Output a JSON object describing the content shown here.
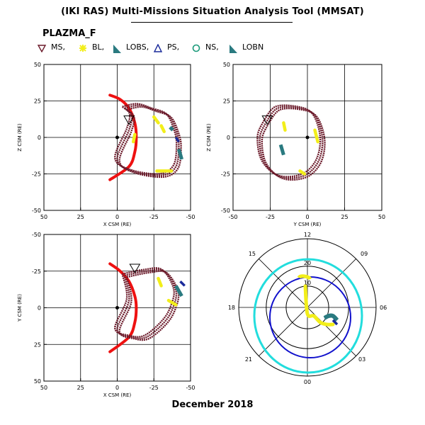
{
  "header": {
    "title": "(IKI RAS) Multi-Missions Situation Analysis Tool (MMSAT)",
    "mission": "PLAZMA_F",
    "footer": "December 2018"
  },
  "legend": [
    {
      "label": "MS,",
      "marker": "triangle-down",
      "color": "#6b1a2a"
    },
    {
      "label": "BL,",
      "marker": "star",
      "color": "#f2ee1a"
    },
    {
      "label": "LOBS,",
      "marker": "wedge",
      "color": "#2a7a80"
    },
    {
      "label": "PS,",
      "marker": "triangle-up",
      "color": "#1a2a9a"
    },
    {
      "label": "NS,",
      "marker": "circle",
      "color": "#1a9a7a"
    },
    {
      "label": "LOBN",
      "marker": "wedge",
      "color": "#2a7a80"
    }
  ],
  "colors": {
    "magnetosheath": "#6b1a2a",
    "boundary_layer": "#f2ee1a",
    "lobe": "#2a7a80",
    "plasma_sheet": "#1a2a9a",
    "bow_shock": "#ee1111",
    "polar_outer_ring": "#22dddd",
    "polar_inner_ring": "#1111cc"
  },
  "chart_data": [
    {
      "type": "scatter",
      "panel": "xz",
      "xlabel": "X CSM (RE)",
      "ylabel": "Z CSM (RE)",
      "xlim": [
        50,
        -50
      ],
      "ylim": [
        -50,
        50
      ],
      "xticks": [
        "50",
        "25",
        "0",
        "-25",
        "-50"
      ],
      "yticks": [
        "-50",
        "-25",
        "0",
        "25",
        "50"
      ],
      "grid": true,
      "bow_shock": [
        [
          5,
          29
        ],
        [
          -2,
          26
        ],
        [
          -8,
          20
        ],
        [
          -12,
          10
        ],
        [
          -13,
          0
        ],
        [
          -12,
          -10
        ],
        [
          -8,
          -20
        ],
        [
          5,
          -29
        ]
      ],
      "orbit_ms": [
        [
          -5,
          20
        ],
        [
          -15,
          22
        ],
        [
          -25,
          19
        ],
        [
          -35,
          15
        ],
        [
          -40,
          5
        ],
        [
          -42,
          -5
        ],
        [
          -40,
          -20
        ],
        [
          -30,
          -26
        ],
        [
          -10,
          -23
        ],
        [
          0,
          -15
        ],
        [
          -8,
          5
        ],
        [
          -10,
          15
        ],
        [
          -5,
          20
        ]
      ],
      "boundary_layer": [
        [
          -25,
          14
        ],
        [
          -28,
          10
        ],
        [
          -30,
          8
        ],
        [
          -32,
          4
        ],
        [
          -12,
          2
        ],
        [
          -11,
          -3
        ],
        [
          -27,
          -23
        ],
        [
          -37,
          -23
        ]
      ],
      "lobe": [
        [
          -36,
          7
        ],
        [
          -38,
          5
        ],
        [
          -42,
          -8
        ],
        [
          -44,
          -15
        ]
      ],
      "plasma_sheet": [
        [
          -40,
          0
        ],
        [
          -42,
          -3
        ]
      ],
      "markers": [
        {
          "x": -8,
          "y": 12,
          "marker": "triangle-down"
        }
      ]
    },
    {
      "type": "scatter",
      "panel": "yz",
      "xlabel": "Y CSM (RE)",
      "ylabel": "Z CSM (RE)",
      "xlim": [
        -50,
        50
      ],
      "ylim": [
        -50,
        50
      ],
      "xticks": [
        "-50",
        "-25",
        "0",
        "25",
        "50"
      ],
      "yticks": [
        "-50",
        "-25",
        "0",
        "25",
        "50"
      ],
      "grid": true,
      "orbit_ms": [
        [
          -28,
          10
        ],
        [
          -20,
          20
        ],
        [
          -5,
          20
        ],
        [
          5,
          15
        ],
        [
          10,
          0
        ],
        [
          8,
          -15
        ],
        [
          0,
          -25
        ],
        [
          -12,
          -28
        ],
        [
          -22,
          -25
        ],
        [
          -30,
          -15
        ],
        [
          -32,
          0
        ],
        [
          -28,
          10
        ]
      ],
      "boundary_layer": [
        [
          -16,
          10
        ],
        [
          -15,
          5
        ],
        [
          5,
          5
        ],
        [
          7,
          -3
        ],
        [
          -5,
          -23
        ],
        [
          -2,
          -25
        ]
      ],
      "lobe": [
        [
          -18,
          -5
        ],
        [
          -16,
          -12
        ],
        [
          -10,
          -20
        ]
      ],
      "markers": [
        {
          "x": -27,
          "y": 12,
          "marker": "triangle-down"
        }
      ]
    },
    {
      "type": "scatter",
      "panel": "xy",
      "xlabel": "X CSM (RE)",
      "ylabel": "Y CSM (RE)",
      "xlim": [
        50,
        -50
      ],
      "ylim": [
        50,
        -50
      ],
      "xticks": [
        "50",
        "25",
        "0",
        "-25",
        "-50"
      ],
      "yticks": [
        "50",
        "25",
        "0",
        "-25",
        "-50"
      ],
      "grid": true,
      "bow_shock": [
        [
          5,
          -30
        ],
        [
          -2,
          -25
        ],
        [
          -8,
          -18
        ],
        [
          -12,
          -8
        ],
        [
          -13,
          0
        ],
        [
          -12,
          10
        ],
        [
          -8,
          20
        ],
        [
          5,
          30
        ]
      ],
      "orbit_ms": [
        [
          -5,
          -22
        ],
        [
          -20,
          -25
        ],
        [
          -32,
          -25
        ],
        [
          -40,
          -12
        ],
        [
          -38,
          0
        ],
        [
          -32,
          10
        ],
        [
          -20,
          20
        ],
        [
          -10,
          20
        ],
        [
          0,
          15
        ],
        [
          -8,
          -5
        ],
        [
          -5,
          -22
        ]
      ],
      "boundary_layer": [
        [
          -28,
          -20
        ],
        [
          -30,
          -15
        ],
        [
          -35,
          -5
        ],
        [
          -40,
          -2
        ],
        [
          -42,
          -10
        ]
      ],
      "lobe": [
        [
          -40,
          -15
        ],
        [
          -44,
          -8
        ],
        [
          -45,
          -2
        ]
      ],
      "plasma_sheet": [
        [
          -43,
          -18
        ],
        [
          -46,
          -15
        ]
      ],
      "markers": [
        {
          "x": -12,
          "y": -27,
          "marker": "triangle-down"
        }
      ]
    },
    {
      "type": "polar",
      "panel": "local-time",
      "hour_labels": {
        "top": "12",
        "upper_right": "09",
        "right": "06",
        "lower_right": "03",
        "bottom": "00",
        "lower_left": "21",
        "left": "18",
        "upper_left": "15"
      },
      "ring_labels": [
        "10",
        "20"
      ],
      "orbit_bl": [
        [
          -1,
          -10
        ],
        [
          0,
          3
        ],
        [
          3,
          4
        ],
        [
          6,
          7
        ],
        [
          9,
          8
        ],
        [
          12,
          8
        ]
      ],
      "orbit_lobe": [
        [
          8,
          5
        ],
        [
          10,
          4
        ],
        [
          12,
          4
        ],
        [
          14,
          6
        ]
      ],
      "orbit_ps": [
        [
          12,
          6
        ],
        [
          14,
          8
        ]
      ]
    }
  ]
}
